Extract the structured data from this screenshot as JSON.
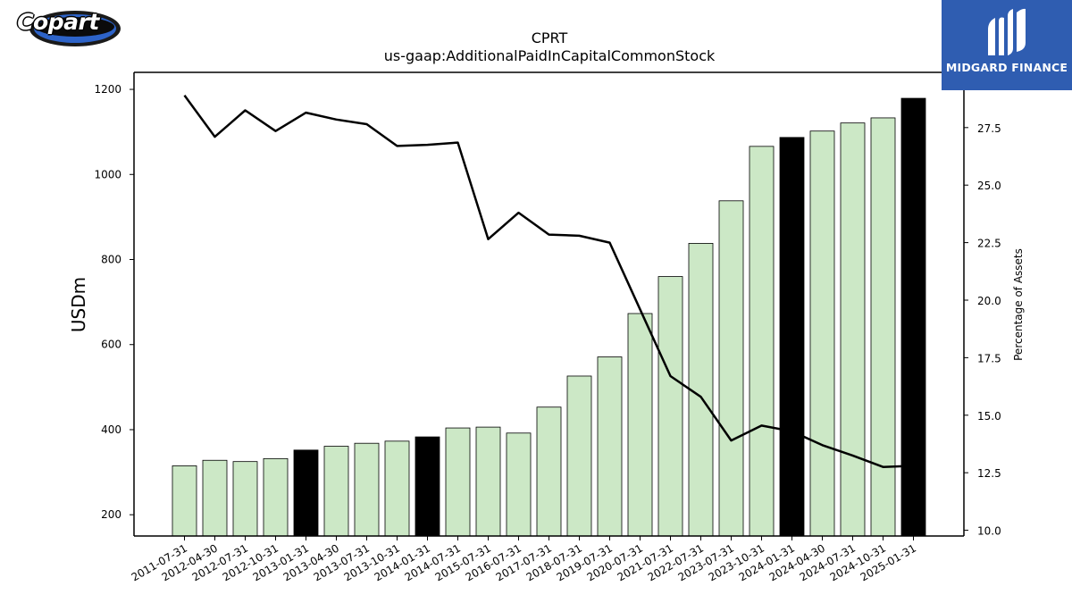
{
  "brand": {
    "left_logo_text": "Copart",
    "right_logo_text": "MIDGARD FINANCE",
    "right_logo_color": "#2f5db1"
  },
  "chart_data": {
    "type": "bar",
    "title": "CPRT",
    "subtitle": "us-gaap:AdditionalPaidInCapitalCommonStock",
    "ylabel": "USDm",
    "y2label": "Percentage of Assets",
    "ylim": [
      150,
      1240
    ],
    "y2lim": [
      9.75,
      29.9
    ],
    "yticks": [
      200,
      400,
      600,
      800,
      1000,
      1200
    ],
    "y2ticks": [
      10.0,
      12.5,
      15.0,
      17.5,
      20.0,
      22.5,
      25.0,
      27.5
    ],
    "categories": [
      "2011-07-31",
      "2012-04-30",
      "2012-07-31",
      "2012-10-31",
      "2013-01-31",
      "2013-04-30",
      "2013-07-31",
      "2013-10-31",
      "2014-01-31",
      "2014-07-31",
      "2015-07-31",
      "2016-07-31",
      "2017-07-31",
      "2018-07-31",
      "2019-07-31",
      "2020-07-31",
      "2021-07-31",
      "2022-07-31",
      "2023-07-31",
      "2023-10-31",
      "2024-01-31",
      "2024-04-30",
      "2024-07-31",
      "2024-10-31",
      "2025-01-31"
    ],
    "series": [
      {
        "type": "bar",
        "values": [
          315,
          328,
          325,
          332,
          352,
          361,
          368,
          373,
          383,
          404,
          406,
          392,
          453,
          526,
          571,
          673,
          760,
          838,
          938,
          1066,
          1087,
          1102,
          1121,
          1133,
          1179
        ],
        "highlight": [
          false,
          false,
          false,
          false,
          true,
          false,
          false,
          false,
          true,
          false,
          false,
          false,
          false,
          false,
          false,
          false,
          false,
          false,
          false,
          false,
          true,
          false,
          false,
          false,
          true
        ]
      },
      {
        "type": "line",
        "axis": "secondary",
        "values": [
          28.9,
          27.1,
          28.25,
          27.35,
          28.15,
          27.85,
          27.65,
          26.7,
          26.75,
          26.85,
          22.65,
          23.8,
          22.85,
          22.8,
          22.5,
          19.6,
          16.7,
          15.8,
          13.9,
          14.55,
          14.3,
          13.7,
          13.25,
          12.75,
          12.8
        ]
      }
    ],
    "colors": {
      "bar_fill": "#cce8c6",
      "bar_highlight": "#000000",
      "bar_edge": "#000000",
      "line": "#000000"
    },
    "grid": false,
    "legend": "none"
  }
}
